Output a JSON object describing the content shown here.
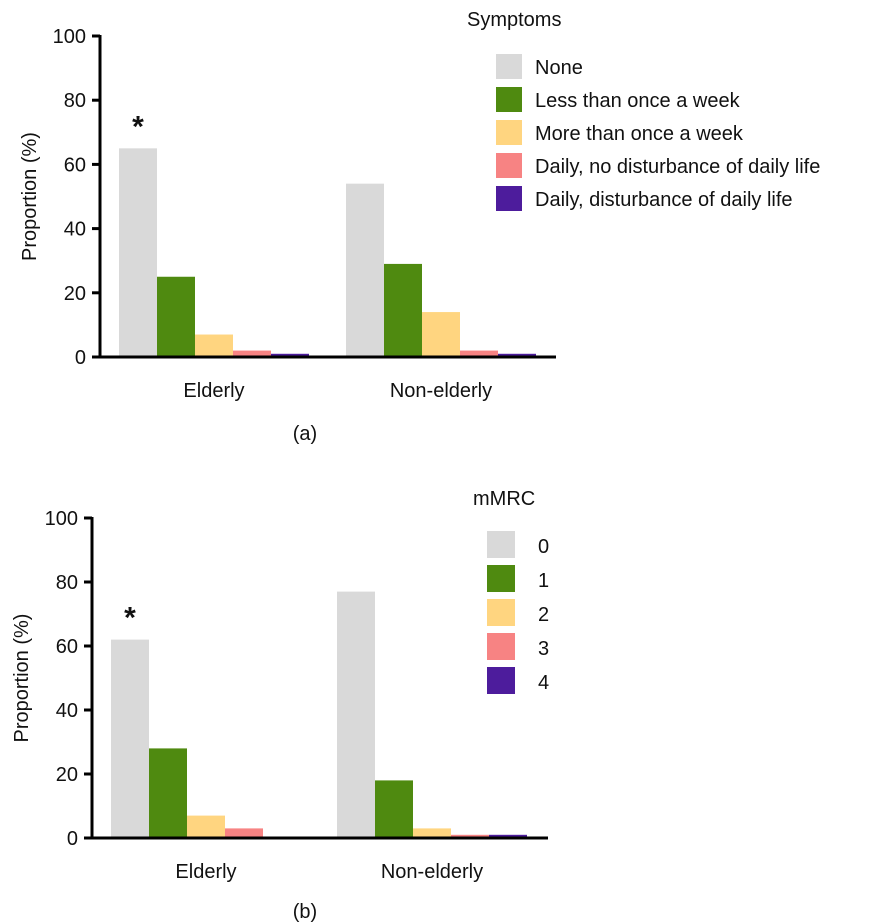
{
  "colors": {
    "series": [
      "#d9d9d9",
      "#4f8a10",
      "#ffd580",
      "#f78383",
      "#4d1c9c"
    ],
    "axis": "#000000"
  },
  "chart_data": [
    {
      "type": "bar",
      "panel_label": "(a)",
      "categories": [
        "Elderly",
        "Non-elderly"
      ],
      "ylabel": "Proportion (%)",
      "ylim": [
        0,
        100
      ],
      "yticks": [
        "0",
        "20",
        "40",
        "60",
        "80",
        "100"
      ],
      "legend_title": "Symptoms",
      "legend_position": "top-right",
      "annotation": "*",
      "annotation_category": "Elderly",
      "series": [
        {
          "name": "None",
          "values": [
            65,
            54
          ]
        },
        {
          "name": "Less than once a week",
          "values": [
            25,
            29
          ]
        },
        {
          "name": "More than once a week",
          "values": [
            7,
            14
          ]
        },
        {
          "name": "Daily, no disturbance of daily life",
          "values": [
            2,
            2
          ]
        },
        {
          "name": "Daily, disturbance of daily life",
          "values": [
            1,
            1
          ]
        }
      ]
    },
    {
      "type": "bar",
      "panel_label": "(b)",
      "categories": [
        "Elderly",
        "Non-elderly"
      ],
      "ylabel": "Proportion (%)",
      "ylim": [
        0,
        100
      ],
      "yticks": [
        "0",
        "20",
        "40",
        "60",
        "80",
        "100"
      ],
      "legend_title": "mMRC",
      "legend_position": "top-right",
      "annotation": "*",
      "annotation_category": "Elderly",
      "series": [
        {
          "name": "0",
          "values": [
            62,
            77
          ]
        },
        {
          "name": "1",
          "values": [
            28,
            18
          ]
        },
        {
          "name": "2",
          "values": [
            7,
            3
          ]
        },
        {
          "name": "3",
          "values": [
            3,
            1
          ]
        },
        {
          "name": "4",
          "values": [
            0,
            1
          ]
        }
      ]
    }
  ]
}
